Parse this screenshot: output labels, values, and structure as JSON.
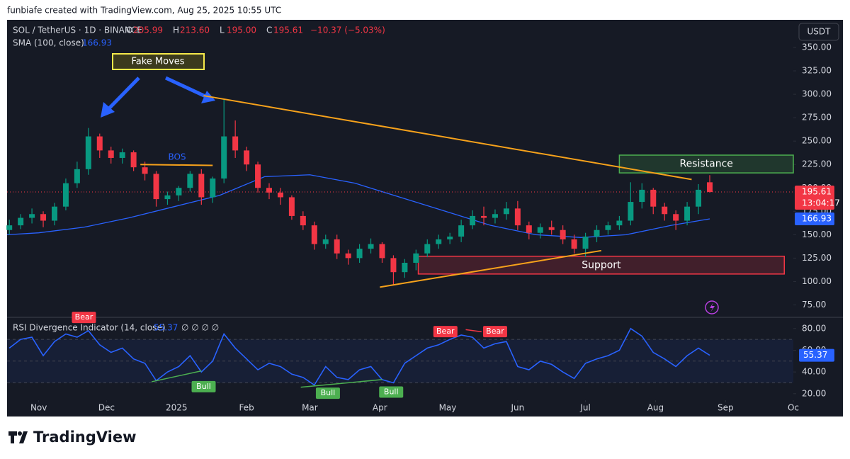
{
  "header": "funbiafe created with TradingView.com, Aug 25, 2025 10:55 UTC",
  "footer_logo": "TradingView",
  "chart_data": {
    "type": "candlestick",
    "title": "SOL / TetherUS · 1D · BINANCE",
    "ohlc": [
      [
        "O",
        "205.99"
      ],
      [
        "H",
        "213.60"
      ],
      [
        "L",
        "195.00"
      ],
      [
        "C",
        "195.61"
      ]
    ],
    "change": "−10.37 (−5.03%)",
    "currency": "USDT",
    "countdown": "13:04:17",
    "up_color": "#089981",
    "down_color": "#f23645",
    "xlim": [
      -14,
      334
    ],
    "xticks": [
      {
        "value": 0,
        "label": "Nov"
      },
      {
        "value": 30,
        "label": "Dec"
      },
      {
        "value": 61,
        "label": "2025"
      },
      {
        "value": 92,
        "label": "Feb"
      },
      {
        "value": 120,
        "label": "Mar"
      },
      {
        "value": 151,
        "label": "Apr"
      },
      {
        "value": 181,
        "label": "May"
      },
      {
        "value": 212,
        "label": "Jun"
      },
      {
        "value": 242,
        "label": "Jul"
      },
      {
        "value": 273,
        "label": "Aug"
      },
      {
        "value": 304,
        "label": "Sep"
      },
      {
        "value": 334,
        "label": "Oc"
      }
    ],
    "ylim": [
      64,
      378
    ],
    "yticks": [
      {
        "value": 75,
        "label": "75.00"
      },
      {
        "value": 100,
        "label": "100.00"
      },
      {
        "value": 125,
        "label": "125.00"
      },
      {
        "value": 150,
        "label": "150.00"
      },
      {
        "value": 175,
        "label": "175.00"
      },
      {
        "value": 200,
        "label": "200.00"
      },
      {
        "value": 225,
        "label": "225.00"
      },
      {
        "value": 250,
        "label": "250.00"
      },
      {
        "value": 275,
        "label": "275.00"
      },
      {
        "value": 300,
        "label": "300.00"
      },
      {
        "value": 325,
        "label": "325.00"
      },
      {
        "value": 350,
        "label": "350.00"
      }
    ],
    "grid": false,
    "x": [
      -13,
      -8,
      -3,
      2,
      7,
      12,
      17,
      22,
      27,
      32,
      37,
      42,
      47,
      52,
      57,
      62,
      67,
      72,
      77,
      82,
      87,
      92,
      97,
      102,
      107,
      112,
      117,
      122,
      127,
      132,
      137,
      142,
      147,
      152,
      157,
      162,
      167,
      172,
      177,
      182,
      187,
      192,
      197,
      202,
      207,
      212,
      217,
      222,
      227,
      232,
      237,
      242,
      247,
      252,
      257,
      262,
      267,
      272,
      277,
      282,
      287,
      292,
      297
    ],
    "open": [
      155,
      160,
      168,
      172,
      165,
      180,
      205,
      220,
      255,
      240,
      232,
      238,
      222,
      215,
      188,
      192,
      200,
      215,
      190,
      210,
      255,
      240,
      225,
      200,
      195,
      190,
      170,
      160,
      140,
      145,
      130,
      125,
      135,
      140,
      125,
      110,
      120,
      130,
      140,
      145,
      148,
      160,
      170,
      168,
      172,
      178,
      160,
      152,
      158,
      155,
      145,
      135,
      148,
      155,
      160,
      165,
      185,
      198,
      180,
      172,
      165,
      180,
      205.99
    ],
    "high": [
      166,
      172,
      178,
      175,
      184,
      210,
      228,
      264,
      258,
      244,
      242,
      240,
      228,
      218,
      196,
      202,
      218,
      220,
      212,
      295,
      272,
      244,
      228,
      205,
      200,
      192,
      175,
      164,
      150,
      150,
      134,
      140,
      146,
      142,
      128,
      124,
      134,
      145,
      150,
      152,
      166,
      176,
      180,
      177,
      185,
      186,
      164,
      162,
      165,
      160,
      150,
      152,
      160,
      164,
      170,
      206,
      205,
      200,
      184,
      176,
      185,
      204,
      213.6
    ],
    "low": [
      150,
      156,
      162,
      158,
      160,
      176,
      200,
      214,
      232,
      226,
      226,
      218,
      208,
      180,
      182,
      186,
      196,
      182,
      184,
      205,
      232,
      218,
      195,
      188,
      182,
      166,
      155,
      134,
      135,
      124,
      118,
      120,
      130,
      120,
      96,
      104,
      112,
      126,
      135,
      140,
      142,
      156,
      160,
      162,
      166,
      155,
      145,
      146,
      150,
      140,
      130,
      126,
      142,
      150,
      155,
      160,
      178,
      172,
      165,
      155,
      160,
      172,
      195
    ],
    "close": [
      160,
      168,
      172,
      165,
      180,
      205,
      220,
      255,
      240,
      232,
      238,
      222,
      215,
      188,
      192,
      200,
      215,
      190,
      210,
      255,
      240,
      225,
      200,
      195,
      190,
      170,
      160,
      140,
      145,
      130,
      125,
      135,
      140,
      125,
      110,
      120,
      130,
      140,
      145,
      148,
      160,
      170,
      168,
      172,
      178,
      160,
      152,
      158,
      155,
      145,
      135,
      148,
      155,
      160,
      165,
      185,
      198,
      180,
      172,
      165,
      180,
      198,
      195.61
    ],
    "sma": {
      "name": "SMA (100, close)",
      "color": "#2962ff",
      "x": [
        -14,
        0,
        20,
        40,
        60,
        80,
        100,
        120,
        140,
        160,
        180,
        200,
        220,
        240,
        260,
        280,
        297
      ],
      "values": [
        150,
        152,
        158,
        168,
        180,
        192,
        212,
        214,
        205,
        190,
        175,
        160,
        150,
        147,
        150,
        160,
        166.93
      ]
    },
    "trendlines": [
      {
        "color": "#f7a21b",
        "x": [
          73,
          289
        ],
        "values": [
          298.5,
          209
        ]
      },
      {
        "color": "#f7a21b",
        "x": [
          151,
          249
        ],
        "values": [
          94,
          133
        ]
      },
      {
        "color": "#f7a21b",
        "x": [
          45,
          77
        ],
        "values": [
          225,
          224
        ]
      }
    ],
    "zones": [
      {
        "label": "Resistance",
        "color": "#4caf50",
        "x": [
          257,
          334
        ],
        "values": [
          216,
          235
        ]
      },
      {
        "label": "Support",
        "color": "#f23645",
        "x": [
          168,
          330
        ],
        "values": [
          108,
          127
        ]
      }
    ],
    "annotations": {
      "fake_moves": "Fake Moves",
      "bos": "BOS"
    },
    "rsi": {
      "name": "RSI Divergence Indicator (14, close)",
      "extras": "∅ ∅ ∅ ∅",
      "color": "#2962ff",
      "ylim": [
        14,
        89
      ],
      "yticks": [
        {
          "value": 20,
          "label": "20.00"
        },
        {
          "value": 40,
          "label": "40.00"
        },
        {
          "value": 60,
          "label": "60.00"
        },
        {
          "value": 80,
          "label": "80.00"
        }
      ],
      "levels": [
        30,
        50,
        70
      ],
      "values": [
        62,
        70,
        72,
        55,
        68,
        75,
        72,
        78,
        65,
        58,
        62,
        52,
        48,
        32,
        40,
        45,
        55,
        40,
        50,
        75,
        62,
        52,
        42,
        48,
        45,
        38,
        35,
        28,
        45,
        35,
        33,
        42,
        45,
        33,
        30,
        48,
        55,
        62,
        65,
        70,
        74,
        72,
        62,
        66,
        68,
        45,
        42,
        50,
        47,
        40,
        34,
        48,
        52,
        55,
        60,
        80,
        73,
        58,
        52,
        45,
        55,
        62,
        55.37
      ],
      "signals": [
        {
          "label": "Bear",
          "day": 20,
          "value": 85
        },
        {
          "label": "Bull",
          "day": 73,
          "value": 33
        },
        {
          "label": "Bull",
          "day": 128,
          "value": 27
        },
        {
          "label": "Bull",
          "day": 156,
          "value": 28
        },
        {
          "label": "Bear",
          "day": 180,
          "value": 72
        },
        {
          "label": "Bear",
          "day": 202,
          "value": 72
        }
      ],
      "divergences": [
        {
          "color": "#4caf50",
          "x": [
            50,
            72
          ],
          "values": [
            31,
            41
          ]
        },
        {
          "color": "#4caf50",
          "x": [
            116,
            152
          ],
          "values": [
            26,
            33
          ]
        },
        {
          "color": "#f23645",
          "x": [
            189,
            196
          ],
          "values": [
            79,
            77
          ]
        }
      ]
    }
  }
}
